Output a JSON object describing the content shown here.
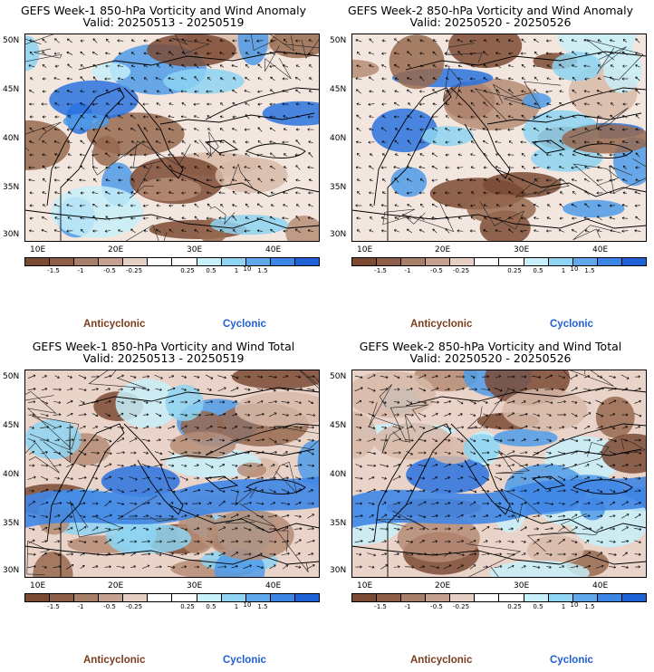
{
  "panels": [
    {
      "title": "GEFS Week-1 850-hPa Vorticity and Wind Anomaly",
      "valid": "Valid: 20250513 - 20250519"
    },
    {
      "title": "GEFS Week-2 850-hPa Vorticity and Wind Anomaly",
      "valid": "Valid: 20250520 - 20250526"
    },
    {
      "title": "GEFS Week-1 850-hPa Vorticity and Wind Total",
      "valid": "Valid: 20250513 - 20250519"
    },
    {
      "title": "GEFS Week-2 850-hPa Vorticity and Wind Total",
      "valid": "Valid: 20250520 - 20250526"
    }
  ],
  "axes": {
    "lat_labels": [
      "50N",
      "45N",
      "40N",
      "35N",
      "30N"
    ],
    "lon_labels": [
      "10E",
      "20E",
      "30E",
      "40E"
    ]
  },
  "colorbar": {
    "labels": [
      "-1.5",
      "-1",
      "-0.5",
      "-0.25",
      "0.25",
      "0.5",
      "1",
      "1.5"
    ],
    "scale_label": "10",
    "colors": [
      "#7a4a33",
      "#8e5e48",
      "#a8806a",
      "#c4a190",
      "#e6d0c6",
      "#ffffff",
      "#ffffff",
      "#c9f1fb",
      "#8fd5f3",
      "#5fa8ec",
      "#3d86e6",
      "#1f62d6"
    ]
  },
  "legend": {
    "anticyclonic": "Anticyclonic",
    "cyclonic": "Cyclonic"
  },
  "colors": {
    "land_fill": "#ffffff",
    "coast": "#000000",
    "anticyclonic_text": "#7a3c1c",
    "cyclonic_text": "#1f5fd6"
  }
}
